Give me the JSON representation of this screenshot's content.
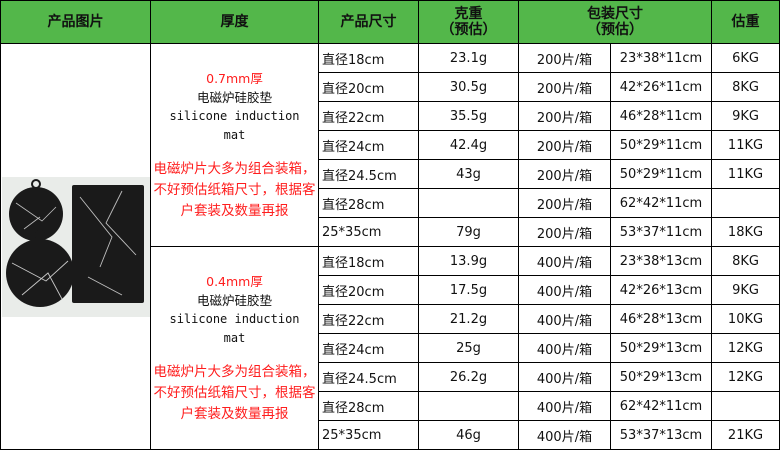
{
  "headers": {
    "image": "产品图片",
    "thickness": "厚度",
    "size": "产品尺寸",
    "weight_line1": "克重",
    "weight_line2": "（预估）",
    "pack_line1": "包装尺寸",
    "pack_line2": "（预估）",
    "est_weight": "估重"
  },
  "groups": [
    {
      "thickness": "0.7mm厚",
      "name_cn": "电磁炉硅胶垫",
      "name_en_line1": "silicone induction",
      "name_en_line2": "mat",
      "note": "电磁炉片大多为组合装箱，不好预估纸箱尺寸，根据客户套装及数量再报",
      "rows": [
        {
          "size": "直径18cm",
          "weight": "23.1g",
          "qty": "200片/箱",
          "carton": "23*38*11cm",
          "est": "6KG"
        },
        {
          "size": "直径20cm",
          "weight": "30.5g",
          "qty": "200片/箱",
          "carton": "42*26*11cm",
          "est": "8KG"
        },
        {
          "size": "直径22cm",
          "weight": "35.5g",
          "qty": "200片/箱",
          "carton": "46*28*11cm",
          "est": "9KG"
        },
        {
          "size": "直径24cm",
          "weight": "42.4g",
          "qty": "200片/箱",
          "carton": "50*29*11cm",
          "est": "11KG"
        },
        {
          "size": "直径24.5cm",
          "weight": "43g",
          "qty": "200片/箱",
          "carton": "50*29*11cm",
          "est": "11KG"
        },
        {
          "size": "直径28cm",
          "weight": "",
          "qty": "200片/箱",
          "carton": "62*42*11cm",
          "est": ""
        },
        {
          "size": "25*35cm",
          "weight": "79g",
          "qty": "200片/箱",
          "carton": "53*37*11cm",
          "est": "18KG"
        }
      ]
    },
    {
      "thickness": "0.4mm厚",
      "name_cn": "电磁炉硅胶垫",
      "name_en_line1": "silicone induction",
      "name_en_line2": "mat",
      "note": "电磁炉片大多为组合装箱，不好预估纸箱尺寸，根据客户套装及数量再报",
      "rows": [
        {
          "size": "直径18cm",
          "weight": "13.9g",
          "qty": "400片/箱",
          "carton": "23*38*13cm",
          "est": "8KG"
        },
        {
          "size": "直径20cm",
          "weight": "17.5g",
          "qty": "400片/箱",
          "carton": "42*26*13cm",
          "est": "9KG"
        },
        {
          "size": "直径22cm",
          "weight": "21.2g",
          "qty": "400片/箱",
          "carton": "46*28*13cm",
          "est": "10KG"
        },
        {
          "size": "直径24cm",
          "weight": "25g",
          "qty": "400片/箱",
          "carton": "50*29*13cm",
          "est": "12KG"
        },
        {
          "size": "直径24.5cm",
          "weight": "26.2g",
          "qty": "400片/箱",
          "carton": "50*29*13cm",
          "est": "12KG"
        },
        {
          "size": "直径28cm",
          "weight": "",
          "qty": "400片/箱",
          "carton": "62*42*11cm",
          "est": ""
        },
        {
          "size": "25*35cm",
          "weight": "46g",
          "qty": "400片/箱",
          "carton": "53*37*13cm",
          "est": "21KG"
        }
      ]
    }
  ],
  "image": {
    "icon": "product-photo-black-marble-mats",
    "photo_bg": "#e9ece9",
    "mat_color": "#1a1a1a"
  },
  "colors": {
    "header_bg": "#53b74a",
    "note_red": "#ff1d1d"
  }
}
